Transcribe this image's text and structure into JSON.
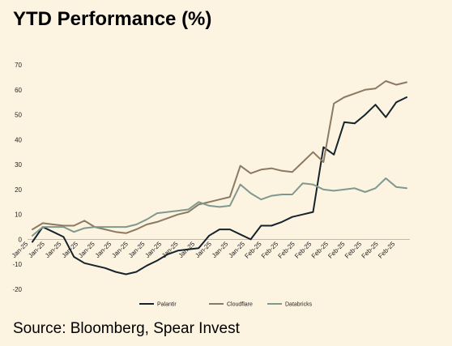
{
  "title": "YTD Performance (%)",
  "source": "Source: Bloomberg, Spear Invest",
  "chart_data": {
    "type": "line",
    "title": "YTD Performance (%)",
    "xlabel": "",
    "ylabel": "",
    "ylim": [
      -20,
      70
    ],
    "yticks": [
      -20,
      -10,
      0,
      10,
      20,
      30,
      40,
      50,
      60,
      70
    ],
    "grid": false,
    "legend_position": "bottom",
    "x": [
      "Jan-25",
      "Jan-25",
      "Jan-25",
      "Jan-25",
      "Jan-25",
      "Jan-25",
      "Jan-25",
      "Jan-25",
      "Jan-25",
      "Jan-25",
      "Jan-25",
      "Jan-25",
      "Jan-25",
      "Jan-25",
      "Jan-25",
      "Jan-25",
      "Jan-25",
      "Jan-25",
      "Jan-25",
      "Jan-25",
      "Jan-25",
      "Jan-25",
      "Feb-25",
      "Feb-25",
      "Feb-25",
      "Feb-25",
      "Feb-25",
      "Feb-25",
      "Feb-25",
      "Feb-25",
      "Feb-25",
      "Feb-25",
      "Feb-25",
      "Feb-25",
      "Feb-25",
      "Feb-25",
      "Feb-25"
    ],
    "x_tick_labels": [
      "Jan-25",
      "Jan-25",
      "Jan-25",
      "Jan-25",
      "Jan-25",
      "Jan-25",
      "Jan-25",
      "Jan-25",
      "Jan-25",
      "Jan-25",
      "Jan-25",
      "Jan-25",
      "Jan-25",
      "Jan-25",
      "Feb-25",
      "Feb-25",
      "Feb-25",
      "Feb-25",
      "Feb-25",
      "Feb-25",
      "Feb-25",
      "Feb-25",
      "Feb-25"
    ],
    "series": [
      {
        "name": "Palantir",
        "color": "#14232e",
        "values": [
          -1,
          5,
          3,
          1,
          -7,
          -9.5,
          -10.5,
          -11.5,
          -13,
          -14,
          -13,
          -10.5,
          -8.5,
          -6,
          -4.5,
          -4,
          -3.5,
          1.5,
          4,
          4,
          2,
          0,
          5.5,
          5.5,
          7,
          9,
          10,
          11,
          37,
          34,
          47,
          46.5,
          50,
          54,
          49,
          55,
          57
        ]
      },
      {
        "name": "Cloudflare",
        "color": "#8a7a62",
        "values": [
          4,
          6.5,
          6,
          5.5,
          5.5,
          7.5,
          5,
          4,
          3,
          2.5,
          4,
          6,
          7,
          8.5,
          10,
          11,
          14,
          15,
          16,
          17,
          29.5,
          26.5,
          28,
          28.5,
          27.5,
          27,
          31,
          35,
          31,
          54.5,
          57,
          58.5,
          60,
          60.5,
          63.5,
          62,
          63
        ]
      },
      {
        "name": "Databricks",
        "color": "#80998e",
        "values": [
          1.5,
          5,
          5,
          5,
          3,
          4.5,
          5,
          5,
          5,
          5,
          6,
          8,
          10.5,
          11,
          11.5,
          12,
          15,
          13.5,
          13,
          13.5,
          22,
          18.5,
          16,
          17.5,
          18,
          18,
          22.5,
          22,
          20,
          19.5,
          20,
          20.5,
          19,
          20.5,
          24.5,
          21,
          20.5
        ]
      }
    ]
  }
}
